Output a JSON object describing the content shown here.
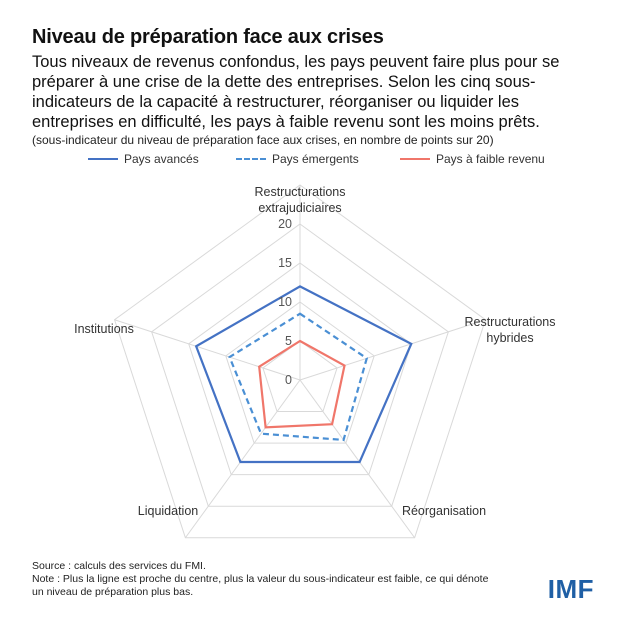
{
  "header": {
    "title": "Niveau de préparation face aux crises",
    "subtitle": "Tous niveaux de revenus confondus, les pays peuvent faire plus pour se préparer à une crise de la dette des entreprises. Selon les cinq sous-indicateurs de la capacité à restructurer, réorganiser ou liquider les entreprises en difficulté, les pays à faible revenu sont les moins prêts.",
    "note": "(sous-indicateur du niveau de préparation face aux crises, en nombre de points sur 20)"
  },
  "colors": {
    "advanced": "#4472c4",
    "emerging": "#4a8fd4",
    "low_income": "#f0766a",
    "grid": "#d9d9d9",
    "logo": "#1f5fa5"
  },
  "chart_data": {
    "type": "radar",
    "title": "Niveau de préparation face aux crises",
    "axes": [
      {
        "line1": "Restructurations",
        "line2": "extrajudiciaires"
      },
      {
        "line1": "Restructurations",
        "line2": "hybrides"
      },
      {
        "line1": "Réorganisation",
        "line2": ""
      },
      {
        "line1": "Liquidation",
        "line2": ""
      },
      {
        "line1": "Institutions",
        "line2": ""
      }
    ],
    "rmax": 20,
    "ticks": [
      "0",
      "5",
      "10",
      "15",
      "20"
    ],
    "tick_values": [
      0,
      5,
      10,
      15,
      20
    ],
    "series": [
      {
        "name": "Pays avancés",
        "values": [
          12,
          15,
          13,
          13,
          14
        ],
        "style": "solid",
        "color": "#4472c4"
      },
      {
        "name": "Pays émergents",
        "values": [
          8.5,
          9,
          9.5,
          8.5,
          9.5
        ],
        "style": "dashed",
        "color": "#4a8fd4"
      },
      {
        "name": "Pays à faible revenu",
        "values": [
          5,
          6,
          7,
          7.5,
          5.5
        ],
        "style": "solid",
        "color": "#f0766a"
      }
    ]
  },
  "footer": {
    "source": "Source : calculs des services du FMI.",
    "note": "Note : Plus la ligne est proche du centre, plus la valeur du sous-indicateur est faible, ce qui dénote un niveau de préparation plus bas."
  },
  "logo": {
    "text": "IMF"
  }
}
